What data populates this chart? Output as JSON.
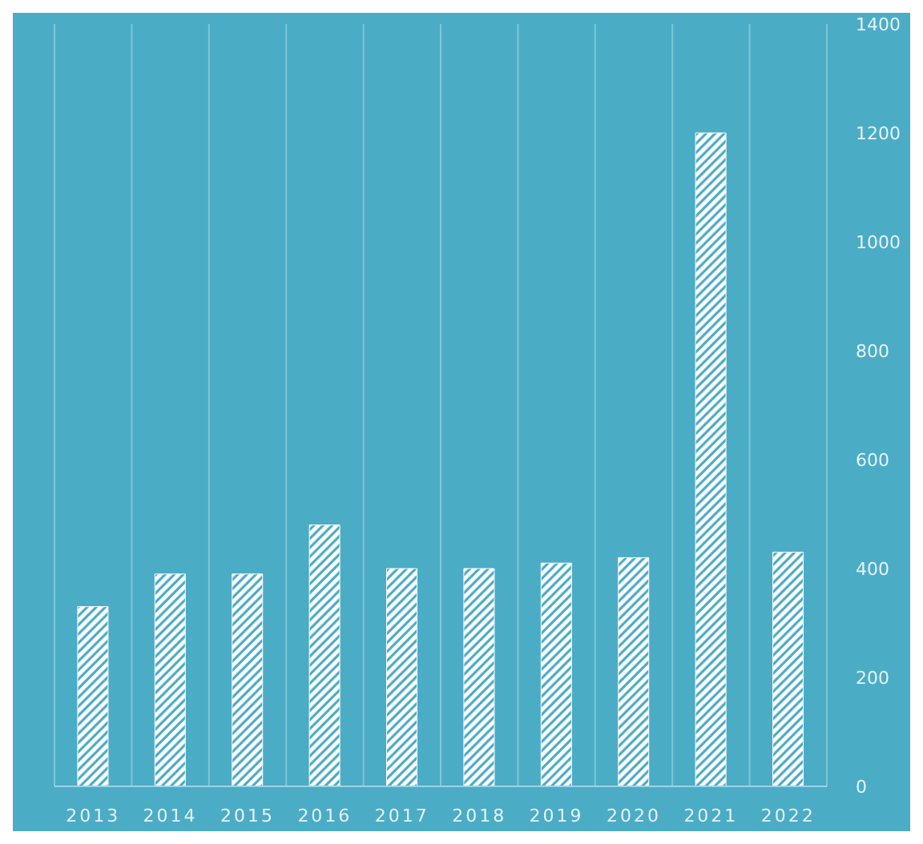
{
  "chart_data": {
    "type": "bar",
    "categories": [
      "2013",
      "2014",
      "2015",
      "2016",
      "2017",
      "2018",
      "2019",
      "2020",
      "2021",
      "2022"
    ],
    "values": [
      330,
      390,
      390,
      480,
      400,
      400,
      410,
      420,
      1200,
      430
    ],
    "color": "#ffffff",
    "ylim": [
      0,
      1400
    ],
    "yticks": [
      0,
      200,
      400,
      600,
      800,
      1000,
      1200,
      1400
    ],
    "grid": "x"
  }
}
